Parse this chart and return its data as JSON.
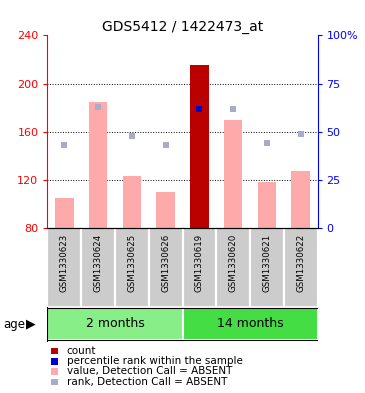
{
  "title": "GDS5412 / 1422473_at",
  "samples": [
    "GSM1330623",
    "GSM1330624",
    "GSM1330625",
    "GSM1330626",
    "GSM1330619",
    "GSM1330620",
    "GSM1330621",
    "GSM1330622"
  ],
  "groups": [
    {
      "label": "2 months",
      "indices": [
        0,
        1,
        2,
        3
      ],
      "color": "#88ee88"
    },
    {
      "label": "14 months",
      "indices": [
        4,
        5,
        6,
        7
      ],
      "color": "#44dd44"
    }
  ],
  "ylim_left": [
    80,
    240
  ],
  "ylim_right": [
    0,
    100
  ],
  "yticks_left": [
    80,
    120,
    160,
    200,
    240
  ],
  "yticks_right": [
    0,
    25,
    50,
    75,
    100
  ],
  "ytick_labels_right": [
    "0",
    "25",
    "50",
    "75",
    "100%"
  ],
  "bar_values": [
    105,
    185,
    123,
    110,
    215,
    170,
    118,
    127
  ],
  "rank_values_pct": [
    43,
    63,
    48,
    43,
    62,
    62,
    44,
    49
  ],
  "count_bar_index": 4,
  "percentile_rank_index": 4,
  "bar_bottom": 80,
  "bar_color_absent": "#ffaaaa",
  "bar_color_count": "#bb0000",
  "rank_color_absent": "#aaaacc",
  "percentile_color": "#0000cc",
  "sample_box_color": "#cccccc",
  "legend_items": [
    {
      "color": "#bb0000",
      "label": "count"
    },
    {
      "color": "#0000cc",
      "label": "percentile rank within the sample"
    },
    {
      "color": "#ffaaaa",
      "label": "value, Detection Call = ABSENT"
    },
    {
      "color": "#aaaacc",
      "label": "rank, Detection Call = ABSENT"
    }
  ]
}
